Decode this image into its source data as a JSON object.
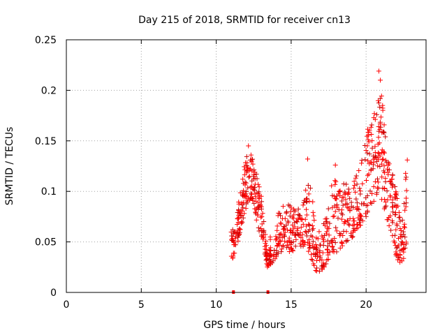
{
  "chart_data": {
    "type": "scatter",
    "title": "Day 215 of 2018, SRMTID for receiver cn13",
    "xlabel": "GPS time / hours",
    "ylabel": "SRMTID / TECUs",
    "xlim": [
      0,
      24
    ],
    "ylim": [
      0,
      0.25
    ],
    "x_ticks": [
      0,
      5,
      10,
      15,
      20
    ],
    "y_ticks": [
      0,
      0.05,
      0.1,
      0.15,
      0.2,
      0.25
    ],
    "x_tick_labels": [
      "0",
      "5",
      "10",
      "15",
      "20"
    ],
    "y_tick_labels": [
      "0",
      "0.05",
      "0.1",
      "0.15",
      "0.2",
      "0.25"
    ],
    "grid": true,
    "marker": "+",
    "series": [
      {
        "name": "SRMTID",
        "color": "#ff0000",
        "mark_color": "#cc0000",
        "envelope": [
          {
            "x": 11.0,
            "y": [
              0.03,
              0.06
            ]
          },
          {
            "x": 11.3,
            "y": [
              0.04,
              0.07
            ]
          },
          {
            "x": 11.6,
            "y": [
              0.06,
              0.1
            ]
          },
          {
            "x": 11.9,
            "y": [
              0.08,
              0.13
            ]
          },
          {
            "x": 12.2,
            "y": [
              0.09,
              0.145
            ]
          },
          {
            "x": 12.5,
            "y": [
              0.09,
              0.13
            ]
          },
          {
            "x": 12.8,
            "y": [
              0.06,
              0.11
            ]
          },
          {
            "x": 13.1,
            "y": [
              0.05,
              0.09
            ]
          },
          {
            "x": 13.4,
            "y": [
              0.025,
              0.04
            ]
          },
          {
            "x": 13.8,
            "y": [
              0.03,
              0.07
            ]
          },
          {
            "x": 14.2,
            "y": [
              0.04,
              0.08
            ]
          },
          {
            "x": 14.6,
            "y": [
              0.04,
              0.09
            ]
          },
          {
            "x": 15.0,
            "y": [
              0.04,
              0.085
            ]
          },
          {
            "x": 15.4,
            "y": [
              0.04,
              0.085
            ]
          },
          {
            "x": 15.8,
            "y": [
              0.045,
              0.09
            ]
          },
          {
            "x": 16.2,
            "y": [
              0.04,
              0.12
            ]
          },
          {
            "x": 16.6,
            "y": [
              0.02,
              0.07
            ]
          },
          {
            "x": 17.0,
            "y": [
              0.02,
              0.06
            ]
          },
          {
            "x": 17.4,
            "y": [
              0.03,
              0.08
            ]
          },
          {
            "x": 17.8,
            "y": [
              0.04,
              0.12
            ]
          },
          {
            "x": 18.2,
            "y": [
              0.04,
              0.1
            ]
          },
          {
            "x": 18.6,
            "y": [
              0.05,
              0.11
            ]
          },
          {
            "x": 19.0,
            "y": [
              0.05,
              0.1
            ]
          },
          {
            "x": 19.4,
            "y": [
              0.06,
              0.12
            ]
          },
          {
            "x": 19.8,
            "y": [
              0.07,
              0.15
            ]
          },
          {
            "x": 20.2,
            "y": [
              0.08,
              0.165
            ]
          },
          {
            "x": 20.6,
            "y": [
              0.09,
              0.19
            ]
          },
          {
            "x": 20.9,
            "y": [
              0.1,
              0.22
            ]
          },
          {
            "x": 21.2,
            "y": [
              0.08,
              0.17
            ]
          },
          {
            "x": 21.5,
            "y": [
              0.06,
              0.14
            ]
          },
          {
            "x": 21.8,
            "y": [
              0.05,
              0.12
            ]
          },
          {
            "x": 22.1,
            "y": [
              0.03,
              0.09
            ]
          },
          {
            "x": 22.4,
            "y": [
              0.025,
              0.08
            ]
          },
          {
            "x": 22.7,
            "y": [
              0.05,
              0.13
            ]
          }
        ],
        "marks_per_segment": 26,
        "peak_points": [
          {
            "x": 12.15,
            "y": 0.145
          },
          {
            "x": 16.1,
            "y": 0.132
          },
          {
            "x": 17.95,
            "y": 0.126
          },
          {
            "x": 20.55,
            "y": 0.177
          },
          {
            "x": 20.85,
            "y": 0.219
          },
          {
            "x": 20.95,
            "y": 0.21
          },
          {
            "x": 21.1,
            "y": 0.185
          },
          {
            "x": 22.75,
            "y": 0.131
          }
        ],
        "zero_points": [
          {
            "x": 11.15,
            "y": 0
          },
          {
            "x": 13.45,
            "y": 0
          }
        ]
      }
    ]
  }
}
